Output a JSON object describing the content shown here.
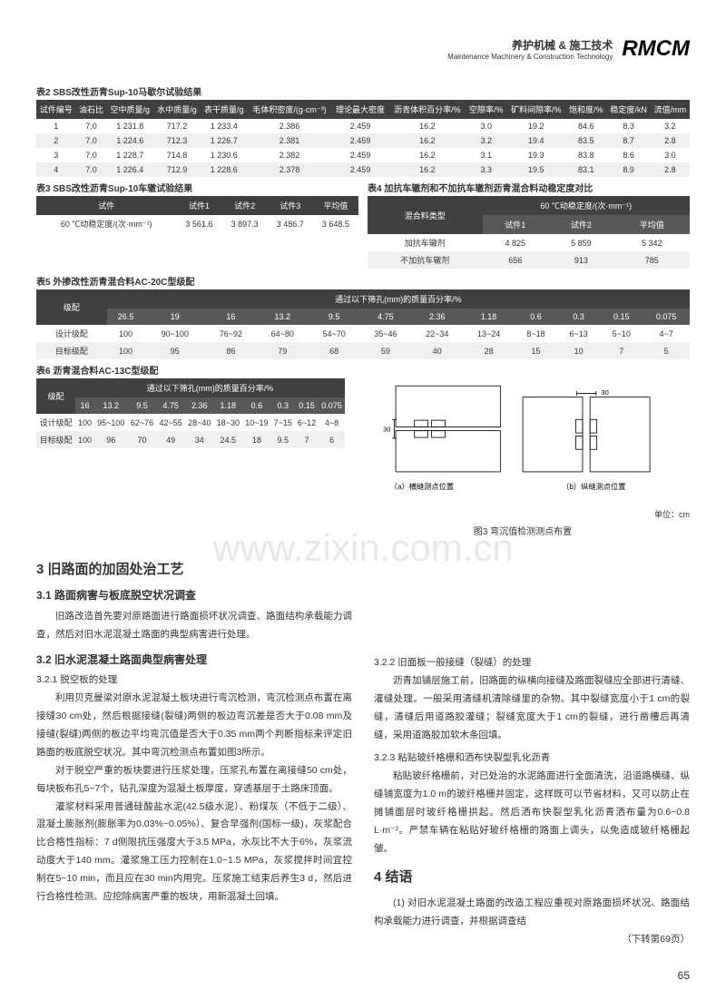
{
  "header": {
    "cn": "养护机械 & 施工技术",
    "en": "Maintenance Machinery & Construction Technology",
    "logo": "RMCM"
  },
  "table2": {
    "caption": "表2  SBS改性沥青Sup-10马歇尔试验结果",
    "cols": [
      "试件编号",
      "油石比",
      "空中质量/g",
      "水中质量/g",
      "表干质量/g",
      "毛体积密度/(g·cm⁻³)",
      "理论最大密度",
      "沥青体积百分率/%",
      "空隙率/%",
      "矿料间隙率/%",
      "饱和度/%",
      "稳定度/kN",
      "流值/mm"
    ],
    "rows": [
      [
        "1",
        "7.0",
        "1 231.8",
        "717.2",
        "1 233.4",
        "2.386",
        "2.459",
        "16.2",
        "3.0",
        "19.2",
        "84.6",
        "8.3",
        "3.2"
      ],
      [
        "2",
        "7.0",
        "1 224.6",
        "712.3",
        "1 226.7",
        "2.381",
        "2.459",
        "16.2",
        "3.2",
        "19.4",
        "83.5",
        "8.7",
        "2.8"
      ],
      [
        "3",
        "7.0",
        "1 228.7",
        "714.8",
        "1 230.6",
        "2.382",
        "2.459",
        "16.2",
        "3.1",
        "19.3",
        "83.8",
        "8.6",
        "3.0"
      ],
      [
        "4",
        "7.0",
        "1 226.4",
        "712.9",
        "1 228.6",
        "2.378",
        "2.459",
        "16.2",
        "3.3",
        "19.5",
        "83.1",
        "8.9",
        "2.8"
      ]
    ]
  },
  "table3": {
    "caption": "表3  SBS改性沥青Sup-10车辙试验结果",
    "cols": [
      "试件",
      "试件1",
      "试件2",
      "试件3",
      "平均值"
    ],
    "rows": [
      [
        "60 ℃动稳定度/(次·mm⁻¹)",
        "3 561.6",
        "3 897.3",
        "3 486.7",
        "3 648.5"
      ]
    ]
  },
  "table4": {
    "caption": "表4  加抗车辙剂和不加抗车辙剂沥青混合料动稳定度对比",
    "groupHeader": "60 ℃动稳定度/(次·mm⁻¹)",
    "leftCol": "混合料类型",
    "subcols": [
      "试件1",
      "试件2",
      "平均值"
    ],
    "rows": [
      [
        "加抗车辙剂",
        "4 825",
        "5 859",
        "5 342"
      ],
      [
        "不加抗车辙剂",
        "656",
        "913",
        "785"
      ]
    ]
  },
  "table5": {
    "caption": "表5  外掺改性沥青混合料AC-20C型级配",
    "firstCol": "级配",
    "groupHeader": "通过以下筛孔(mm)的质量百分率/%",
    "sieves": [
      "26.5",
      "19",
      "16",
      "13.2",
      "9.5",
      "4.75",
      "2.36",
      "1.18",
      "0.6",
      "0.3",
      "0.15",
      "0.075"
    ],
    "rows": [
      [
        "设计级配",
        "100",
        "90~100",
        "76~92",
        "64~80",
        "54~70",
        "35~46",
        "22~34",
        "13~24",
        "8~18",
        "6~13",
        "5~10",
        "4~7"
      ],
      [
        "目标级配",
        "100",
        "95",
        "86",
        "79",
        "68",
        "59",
        "40",
        "28",
        "15",
        "10",
        "7",
        "5"
      ]
    ]
  },
  "table6": {
    "caption": "表6  沥青混合料AC-13C型级配",
    "firstCol": "级配",
    "groupHeader": "通过以下筛孔(mm)的质量百分率/%",
    "sieves": [
      "16",
      "13.2",
      "9.5",
      "4.75",
      "2.36",
      "1.18",
      "0.6",
      "0.3",
      "0.15",
      "0.075"
    ],
    "rows": [
      [
        "设计级配",
        "100",
        "95~100",
        "62~76",
        "42~55",
        "28~40",
        "18~30",
        "10~19",
        "7~15",
        "6~12",
        "4~8"
      ],
      [
        "目标级配",
        "100",
        "96",
        "70",
        "49",
        "34",
        "24.5",
        "18",
        "9.5",
        "7",
        "6"
      ]
    ]
  },
  "figure3": {
    "caption": "图3  弯沉值检测测点布置",
    "labelA": "（a）横缝测点位置",
    "labelB": "（b）纵缝测点位置",
    "unit": "单位：cm",
    "dim30a": "30",
    "dim30b": "30"
  },
  "text": {
    "sec3": "3  旧路面的加固处治工艺",
    "sec31": "3.1  路面病害与板底脱空状况调查",
    "p31": "旧路改造首先要对原路面进行路面损坏状况调查、路面结构承载能力调查，然后对旧水泥混凝土路面的典型病害进行处理。",
    "sec32": "3.2  旧水泥混凝土路面典型病害处理",
    "sec321": "3.2.1  脱空板的处理",
    "p321a": "利用贝克曼梁对原水泥混凝土板块进行弯沉检测，弯沉检测点布置在离接缝30 cm处，然后根据接缝(裂缝)两侧的板边弯沉差是否大于0.08 mm及接缝(裂缝)两侧的板边平均弯沉值是否大于0.35 mm两个判断指标来评定旧路面的板底脱空状况。其中弯沉检测点布置如图3所示。",
    "p321b": "对于脱空严重的板块要进行压浆处理，压浆孔布置在离接缝50 cm处，每块板布孔5~7个，钻孔深度为混凝土板厚度，穿透基层于土路床顶面。",
    "p321c": "灌浆材料采用普通硅酸盐水泥(42.5级水泥）、粉煤灰（不低于二级）、混凝土膨胀剂(膨胀率为0.03%~0.05%）、复合早强剂(国标一级)，灰浆配合比合格性指标：7 d侧限抗压强度大于3.5 MPa，水灰比不大于6%，灰浆流动度大于140 mm。灌浆施工压力控制在1.0~1.5 MPa，灰浆搅拌时间宜控制在5~10 min，而且应在30 min内用完。压浆施工结束后养生3 d，然后进行合格性检测。应挖除病害严重的板块，用新混凝土回填。",
    "sec322": "3.2.2  旧面板一般接缝（裂缝）的处理",
    "p322": "沥青加铺层施工前，旧路面的纵横向接缝及路面裂缝应全部进行清缝、灌缝处理。一般采用清缝机清除缝里的杂物。其中裂缝宽度小于1 cm的裂缝，清缝后用道路胶灌缝；裂缝宽度大于1 cm的裂缝，进行凿槽后再清缝，采用道路胶加软木条回填。",
    "sec323": "3.2.3  粘贴玻纤格栅和洒布快裂型乳化沥青",
    "p323": "粘贴玻纤格栅前，对已处治的水泥路面进行全面清洗，沿道路横缝、纵缝铺宽度为1.0 m的玻纤格栅并固定，这样既可以节省材料，又可以防止在摊铺面层时玻纤格栅拱起。然后洒布快裂型乳化沥青洒布量为0.6~0.8 L·m⁻²。严禁车辆在粘贴好玻纤格栅的路面上调头，以免造成玻纤格栅起皱。",
    "sec4": "4  结语",
    "p4": "(1) 对旧水泥混凝土路面的改造工程应重视对原路面损坏状况、路面结构承载能力进行调查，并根据调查结",
    "cont": "（下转第69页）"
  },
  "watermark": "www.zixin.com.cn",
  "pageNum": "65"
}
